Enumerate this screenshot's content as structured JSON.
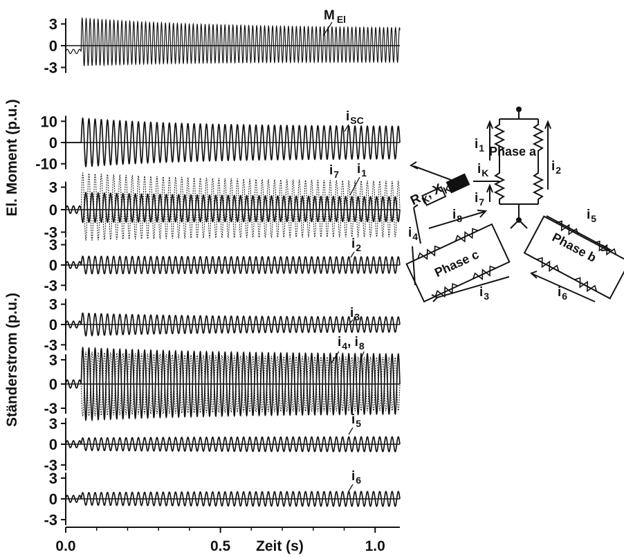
{
  "chart_data": {
    "type": "line",
    "xlabel": "Zeit (s)",
    "x_ticks": [
      "0.0",
      "0.5",
      "1.0"
    ],
    "xlim": [
      0,
      1.08
    ],
    "fault_time": 0.05,
    "panels": [
      {
        "id": "m",
        "ticks": [
          "3",
          "0",
          "-3"
        ],
        "tick_values": [
          3,
          0,
          -3
        ],
        "ylim": [
          -4.2,
          4.2
        ],
        "series": [
          {
            "name": "M El",
            "style": "solid",
            "freq": 78,
            "pre_amp": 0.3,
            "pre_offset": -0.8,
            "offset": 0.5,
            "amp_start": 3.3,
            "amp_end": 2.3,
            "decay": 2.5,
            "dense": true
          }
        ]
      },
      {
        "id": "isc",
        "ticks": [
          "10",
          "0",
          "-10"
        ],
        "tick_values": [
          10,
          0,
          -10
        ],
        "ylim": [
          -14,
          14
        ],
        "series": [
          {
            "name": "i SC",
            "style": "solid",
            "freq": 50,
            "pre_amp": 0,
            "pre_offset": 0,
            "offset": 0,
            "amp_start": 11.5,
            "amp_end": 7.5,
            "decay": 3,
            "dense": false
          }
        ]
      },
      {
        "id": "i1",
        "ticks": [
          "3",
          "0",
          "-3"
        ],
        "tick_values": [
          3,
          0,
          -3
        ],
        "ylim": [
          -4.8,
          4.8
        ],
        "series": [
          {
            "name": "i 7",
            "style": "dashed",
            "freq": 50,
            "pre_amp": 0.5,
            "pre_offset": 0,
            "offset": 0.4,
            "amp_start": 4.5,
            "amp_end": 3.6,
            "decay": 2,
            "dense": false
          },
          {
            "name": "i 1",
            "style": "solid",
            "freq": 50,
            "pre_amp": 0.5,
            "pre_offset": 0,
            "offset": 0.3,
            "amp_start": 2.0,
            "amp_end": 1.6,
            "decay": 2,
            "dense": false
          }
        ]
      },
      {
        "id": "i2",
        "ticks": [
          "3",
          "0",
          "-3"
        ],
        "tick_values": [
          3,
          0,
          -3
        ],
        "ylim": [
          -4.5,
          4.5
        ],
        "series": [
          {
            "name": "i 2",
            "style": "solid",
            "freq": 50,
            "pre_amp": 0.5,
            "pre_offset": 0,
            "offset": 0,
            "amp_start": 1.3,
            "amp_end": 1.2,
            "decay": 2,
            "dense": false
          }
        ]
      },
      {
        "id": "i3",
        "ticks": [
          "3",
          "0",
          "-3"
        ],
        "tick_values": [
          3,
          0,
          -3
        ],
        "ylim": [
          -4.5,
          4.5
        ],
        "series": [
          {
            "name": "i 3",
            "style": "solid",
            "freq": 50,
            "pre_amp": 0.5,
            "pre_offset": 0,
            "offset": 0,
            "amp_start": 1.7,
            "amp_end": 1.1,
            "decay": 3,
            "dense": false
          }
        ]
      },
      {
        "id": "i4",
        "ticks": [
          "3",
          "0",
          "-3"
        ],
        "tick_values": [
          3,
          0,
          -3
        ],
        "ylim": [
          -4.8,
          4.8
        ],
        "series": [
          {
            "name": "i 4",
            "style": "solid",
            "freq": 50,
            "pre_amp": 0.5,
            "pre_offset": 0,
            "offset": 0,
            "amp_start": 4.5,
            "amp_end": 3.6,
            "decay": 2,
            "dense": false
          },
          {
            "name": "i 8",
            "style": "dashed",
            "freq": 50,
            "pre_amp": 0.5,
            "pre_offset": 0,
            "offset": 0,
            "amp_start": 4.0,
            "amp_end": 3.2,
            "decay": 2,
            "dense": false
          }
        ]
      },
      {
        "id": "i5",
        "ticks": [
          "3",
          "0",
          "-3"
        ],
        "tick_values": [
          3,
          0,
          -3
        ],
        "ylim": [
          -4.5,
          4.5
        ],
        "series": [
          {
            "name": "i 5",
            "style": "solid",
            "freq": 50,
            "pre_amp": 0.5,
            "pre_offset": 0,
            "offset": 0,
            "amp_start": 0.9,
            "amp_end": 1.1,
            "decay": 2,
            "dense": false
          }
        ]
      },
      {
        "id": "i6",
        "ticks": [
          "3",
          "0",
          "-3"
        ],
        "tick_values": [
          3,
          0,
          -3
        ],
        "ylim": [
          -4.5,
          4.5
        ],
        "series": [
          {
            "name": "i 6",
            "style": "solid",
            "freq": 50,
            "pre_amp": 0.5,
            "pre_offset": 0,
            "offset": 0,
            "amp_start": 0.9,
            "amp_end": 1.1,
            "decay": 2,
            "dense": false
          }
        ]
      }
    ],
    "ylabels": [
      "El. Moment (p.u.)",
      "Ständerstrom (p.u.)"
    ],
    "labels": {
      "m_el": {
        "main": "M",
        "sub": "El"
      },
      "i_sc": {
        "main": "i",
        "sub": "SC"
      },
      "i7": {
        "main": "i",
        "sub": "7"
      },
      "i1": {
        "main": "i",
        "sub": "1"
      },
      "i2": {
        "main": "i",
        "sub": "2"
      },
      "i3": {
        "main": "i",
        "sub": "3"
      },
      "i4_i8": {
        "main": "i",
        "sub": "4",
        "sep": ", ",
        "main2": "i",
        "sub2": "8"
      },
      "i5": {
        "main": "i",
        "sub": "5"
      },
      "i6": {
        "main": "i",
        "sub": "6"
      }
    }
  },
  "diagram": {
    "phase_a": "Phase a",
    "phase_b": "Phase b",
    "phase_c": "Phase c",
    "rk": "R",
    "rk_sub": "K",
    "xk": "X",
    "xk_sub": "K",
    "i1": "i",
    "i1_sub": "1",
    "i2": "i",
    "i2_sub": "2",
    "i3": "i",
    "i3_sub": "3",
    "i4": "i",
    "i4_sub": "4",
    "i5": "i",
    "i5_sub": "5",
    "i6": "i",
    "i6_sub": "6",
    "i7": "i",
    "i7_sub": "7",
    "i8": "i",
    "i8_sub": "8",
    "ik": "i",
    "ik_sub": "K"
  }
}
